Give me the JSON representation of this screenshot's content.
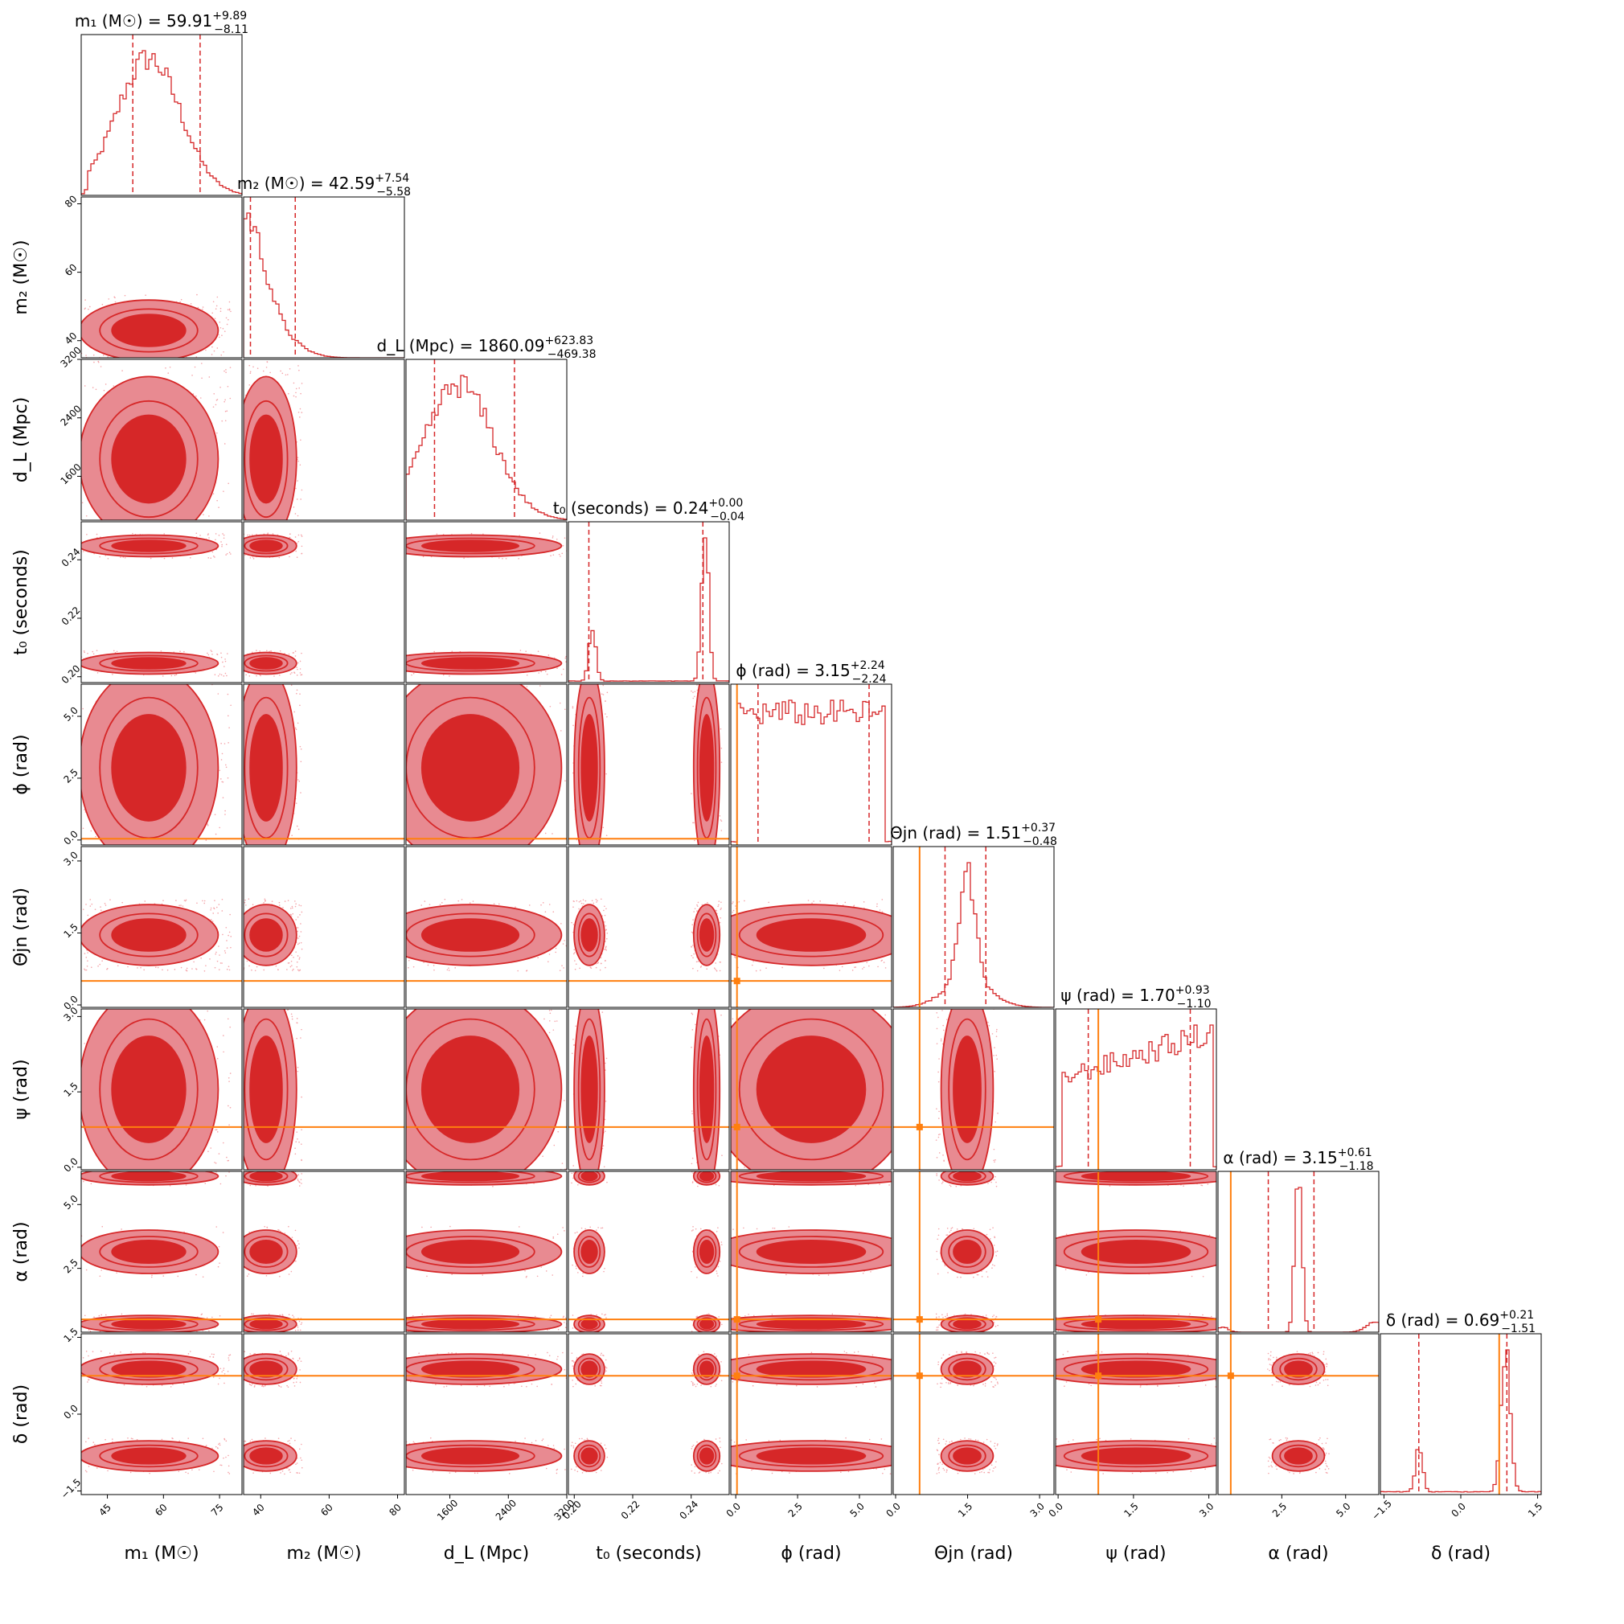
{
  "chart_data": {
    "type": "corner",
    "colors": {
      "posterior": "#d62728",
      "posterior_fill": "#e88a91",
      "truth": "#ff7f0e"
    },
    "params": [
      {
        "key": "m1",
        "label": "m₁ (M☉)",
        "title_name": "m₁ (M☉)",
        "median": "59.91",
        "plus": "+9.89",
        "minus": "−8.11",
        "range": [
          38,
          81
        ],
        "ticks": [
          "45",
          "60",
          "75"
        ],
        "ticks_y": []
      },
      {
        "key": "m2",
        "label": "m₂ (M☉)",
        "title_name": "m₂ (M☉)",
        "median": "42.59",
        "plus": "+7.54",
        "minus": "−5.58",
        "range": [
          35,
          82
        ],
        "ticks": [
          "40",
          "60",
          "80"
        ],
        "ticks_y": [
          "40",
          "60",
          "80"
        ]
      },
      {
        "key": "dL",
        "label": "d_L (Mpc)",
        "title_name": "d_L (Mpc)",
        "median": "1860.09",
        "plus": "+623.83",
        "minus": "−469.38",
        "range": [
          1000,
          3200
        ],
        "ticks": [
          "1600",
          "2400",
          "3200"
        ],
        "ticks_y": [
          "1600",
          "2400",
          "3200"
        ]
      },
      {
        "key": "t0",
        "label": "t₀ (seconds)",
        "title_name": "t₀ (seconds)",
        "median": "0.24",
        "plus": "+0.00",
        "minus": "−0.04",
        "range": [
          0.198,
          0.253
        ],
        "ticks": [
          "0.20",
          "0.22",
          "0.24"
        ],
        "ticks_y": [
          "0.20",
          "0.22",
          "0.24"
        ]
      },
      {
        "key": "phi",
        "label": "ϕ (rad)",
        "title_name": "ϕ (rad)",
        "median": "3.15",
        "plus": "+2.24",
        "minus": "−2.24",
        "range": [
          -0.2,
          6.3
        ],
        "ticks": [
          "0.0",
          "2.5",
          "5.0"
        ],
        "ticks_y": [
          "0.0",
          "2.5",
          "5.0"
        ]
      },
      {
        "key": "theta",
        "label": "Θjn (rad)",
        "title_name": "Θjn (rad)",
        "median": "1.51",
        "plus": "+0.37",
        "minus": "−0.48",
        "range": [
          -0.05,
          3.3
        ],
        "ticks": [
          "0.0",
          "1.5",
          "3.0"
        ],
        "ticks_y": [
          "0.0",
          "1.5",
          "3.0"
        ]
      },
      {
        "key": "psi",
        "label": "ψ (rad)",
        "title_name": "ψ (rad)",
        "median": "1.70",
        "plus": "+0.93",
        "minus": "−1.10",
        "range": [
          -0.05,
          3.15
        ],
        "ticks": [
          "0.0",
          "1.5",
          "3.0"
        ],
        "ticks_y": [
          "0.0",
          "1.5",
          "3.0"
        ]
      },
      {
        "key": "alpha",
        "label": "α (rad)",
        "title_name": "α (rad)",
        "median": "3.15",
        "plus": "+0.61",
        "minus": "−1.18",
        "range": [
          0.0,
          6.3
        ],
        "ticks": [
          "2.5",
          "5.0"
        ],
        "ticks_y": [
          "2.5",
          "5.0"
        ]
      },
      {
        "key": "delta",
        "label": "δ (rad)",
        "title_name": "δ (rad)",
        "median": "0.69",
        "plus": "+0.21",
        "minus": "−1.51",
        "range": [
          -1.57,
          1.57
        ],
        "ticks": [
          "−1.5",
          "0.0",
          "1.5"
        ],
        "ticks_y": [
          "−1.5",
          "0.0",
          "1.5"
        ]
      }
    ],
    "truth": {
      "phi": 0.05,
      "theta": 0.5,
      "psi": 0.8,
      "alpha": 0.5,
      "delta": 0.75
    },
    "quantiles": {
      "m1": [
        51.8,
        69.8
      ],
      "m2": [
        37.0,
        50.1
      ],
      "dL": [
        1390,
        2484
      ],
      "t0": [
        0.205,
        0.244
      ],
      "phi": [
        0.9,
        5.39
      ],
      "theta": [
        1.03,
        1.88
      ],
      "psi": [
        0.6,
        2.63
      ],
      "alpha": [
        1.97,
        3.76
      ],
      "delta": [
        -0.82,
        0.9
      ]
    }
  }
}
